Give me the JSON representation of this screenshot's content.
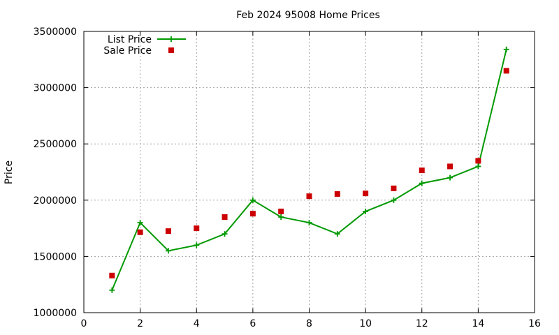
{
  "chart_data": {
    "type": "line",
    "title": "Feb 2024 95008 Home Prices",
    "xlabel": "",
    "ylabel": "Price",
    "xlim": [
      0,
      16
    ],
    "ylim": [
      1000000,
      3500000
    ],
    "xticks": [
      0,
      2,
      4,
      6,
      8,
      10,
      12,
      14,
      16
    ],
    "yticks": [
      1000000,
      1500000,
      2000000,
      2500000,
      3000000,
      3500000
    ],
    "grid": true,
    "legend_position": "top-left",
    "series": [
      {
        "name": "List Price",
        "style": "line-with-plus-markers",
        "color": "#009900",
        "x": [
          1,
          2,
          3,
          4,
          5,
          6,
          7,
          8,
          9,
          10,
          11,
          12,
          13,
          14,
          15
        ],
        "values": [
          1200000,
          1800000,
          1550000,
          1600000,
          1700000,
          2000000,
          1850000,
          1800000,
          1700000,
          1900000,
          2000000,
          2150000,
          2200000,
          2300000,
          3340000
        ]
      },
      {
        "name": "Sale Price",
        "style": "square-markers",
        "color": "#cc0000",
        "x": [
          1,
          2,
          3,
          4,
          5,
          6,
          7,
          8,
          9,
          10,
          11,
          12,
          13,
          14,
          15
        ],
        "values": [
          1330000,
          1715000,
          1725000,
          1750000,
          1850000,
          1880000,
          1900000,
          2035000,
          2055000,
          2060000,
          2105000,
          2265000,
          2300000,
          2350000,
          3150000
        ]
      }
    ]
  }
}
